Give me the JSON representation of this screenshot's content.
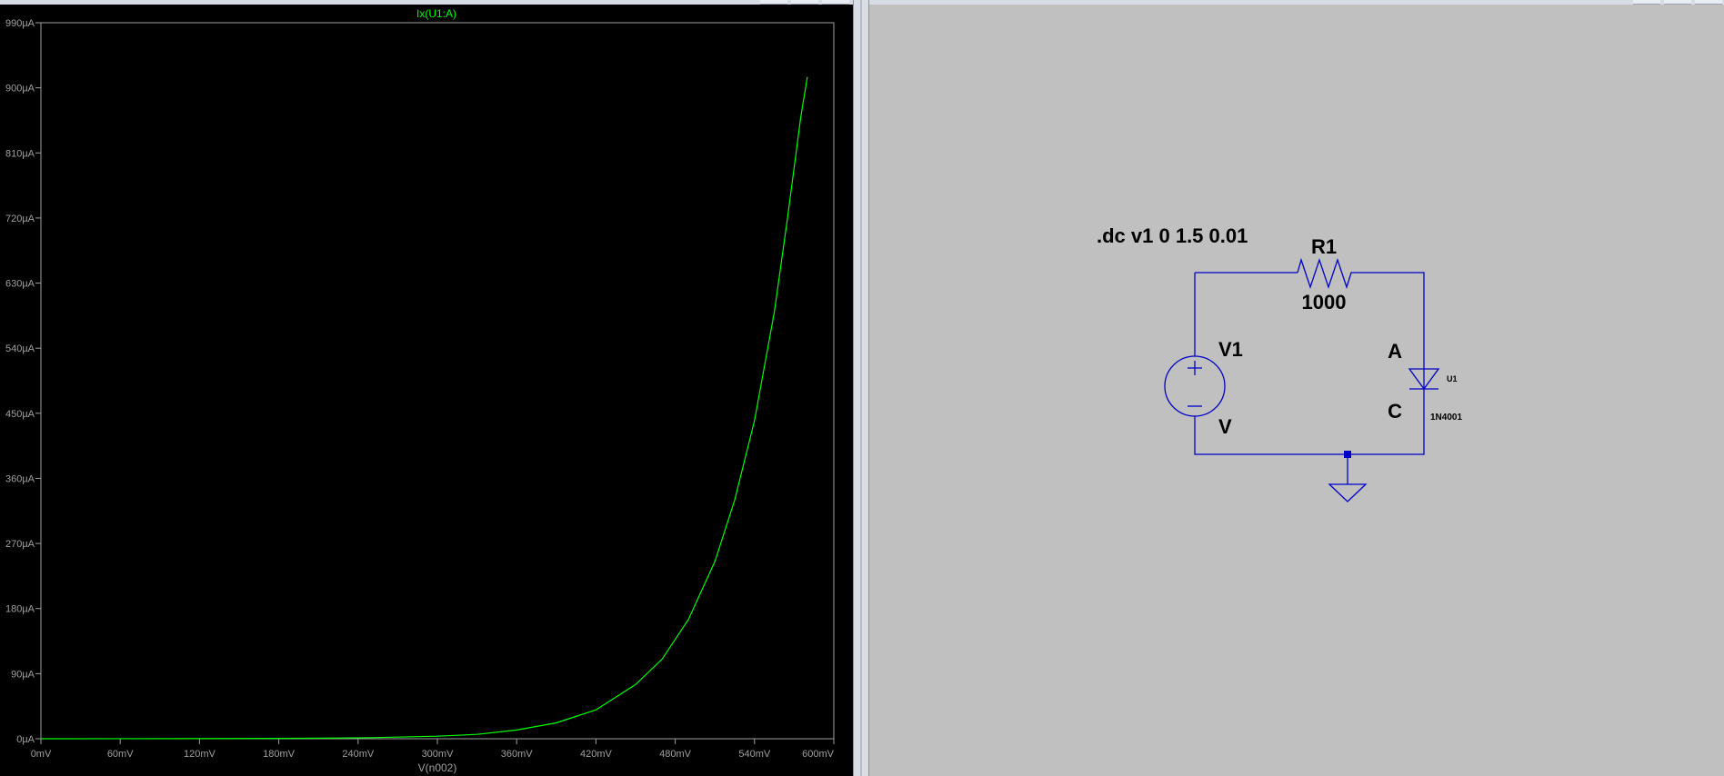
{
  "plot": {
    "trace_label": "Ix(U1:A)",
    "x_axis_label": "V(n002)",
    "y_ticks": [
      "0µA",
      "90µA",
      "180µA",
      "270µA",
      "360µA",
      "450µA",
      "540µA",
      "630µA",
      "720µA",
      "810µA",
      "900µA",
      "990µA"
    ],
    "x_ticks": [
      "0mV",
      "60mV",
      "120mV",
      "180mV",
      "240mV",
      "300mV",
      "360mV",
      "420mV",
      "480mV",
      "540mV",
      "600mV"
    ],
    "trace_color": "#00ff00",
    "axis_color": "#a0a0a0",
    "background": "#000000"
  },
  "chart_data": {
    "type": "line",
    "title": "Ix(U1:A)",
    "xlabel": "V(n002)",
    "ylabel": "",
    "xlim": [
      0,
      600
    ],
    "ylim": [
      0,
      990
    ],
    "x_units": "mV",
    "y_units": "µA",
    "grid": false,
    "series": [
      {
        "name": "Ix(U1:A)",
        "x": [
          0,
          100,
          200,
          250,
          300,
          330,
          360,
          390,
          420,
          450,
          470,
          490,
          510,
          525,
          540,
          555,
          565,
          575,
          580
        ],
        "y": [
          0,
          0.1,
          0.6,
          1.5,
          3.5,
          6,
          12,
          22,
          40,
          75,
          110,
          165,
          245,
          330,
          440,
          590,
          720,
          860,
          915
        ]
      }
    ]
  },
  "schematic": {
    "directive": ".dc v1 0 1.5 0.01",
    "resistor_name": "R1",
    "resistor_value": "1000",
    "source_name": "V1",
    "source_value": "V",
    "diode_anode": "A",
    "diode_cathode": "C",
    "diode_name": "U1",
    "diode_model": "1N4001",
    "wire_color": "#0000c8",
    "background": "#c0c0c0"
  }
}
